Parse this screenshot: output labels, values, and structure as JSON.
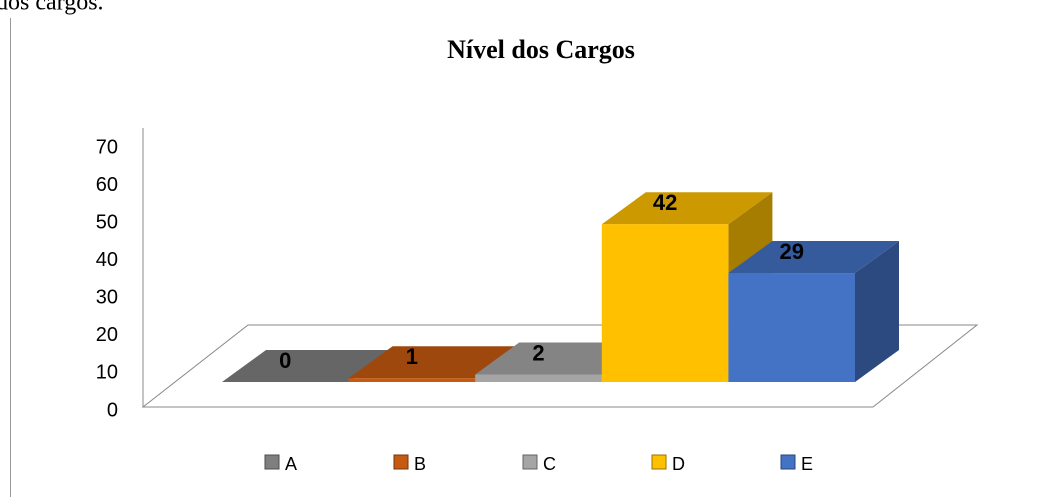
{
  "header_text": "dos cargos.",
  "chart_data": {
    "type": "bar3d",
    "title": "Nível dos Cargos",
    "categories": [
      "A",
      "B",
      "C",
      "D",
      "E"
    ],
    "values": [
      0,
      1,
      2,
      42,
      29
    ],
    "colors": [
      "#7f7f7f",
      "#c55a11",
      "#a5a5a5",
      "#ffc000",
      "#4472c4"
    ],
    "ylim": [
      0,
      70
    ],
    "yticks": [
      0,
      10,
      20,
      30,
      40,
      50,
      60,
      70
    ],
    "legend": "bottom"
  }
}
